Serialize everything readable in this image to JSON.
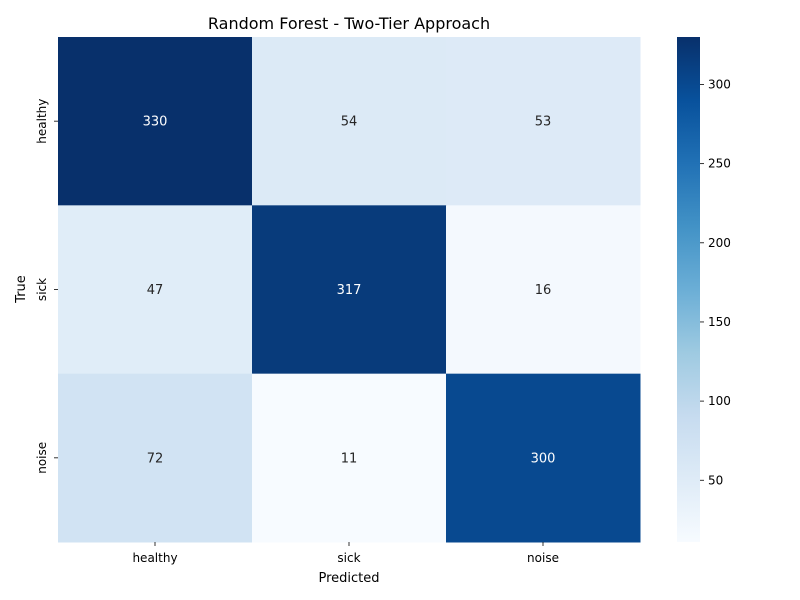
{
  "chart_data": {
    "type": "heatmap",
    "title": "Random Forest - Two-Tier Approach",
    "xlabel": "Predicted",
    "ylabel": "True",
    "x_categories": [
      "healthy",
      "sick",
      "noise"
    ],
    "y_categories": [
      "healthy",
      "sick",
      "noise"
    ],
    "values": [
      [
        330,
        54,
        53
      ],
      [
        47,
        317,
        16
      ],
      [
        72,
        11,
        300
      ]
    ],
    "colormap": "Blues",
    "color_range": [
      11,
      330
    ],
    "colorbar_ticks": [
      50,
      100,
      150,
      200,
      250,
      300
    ],
    "annotations": true
  }
}
